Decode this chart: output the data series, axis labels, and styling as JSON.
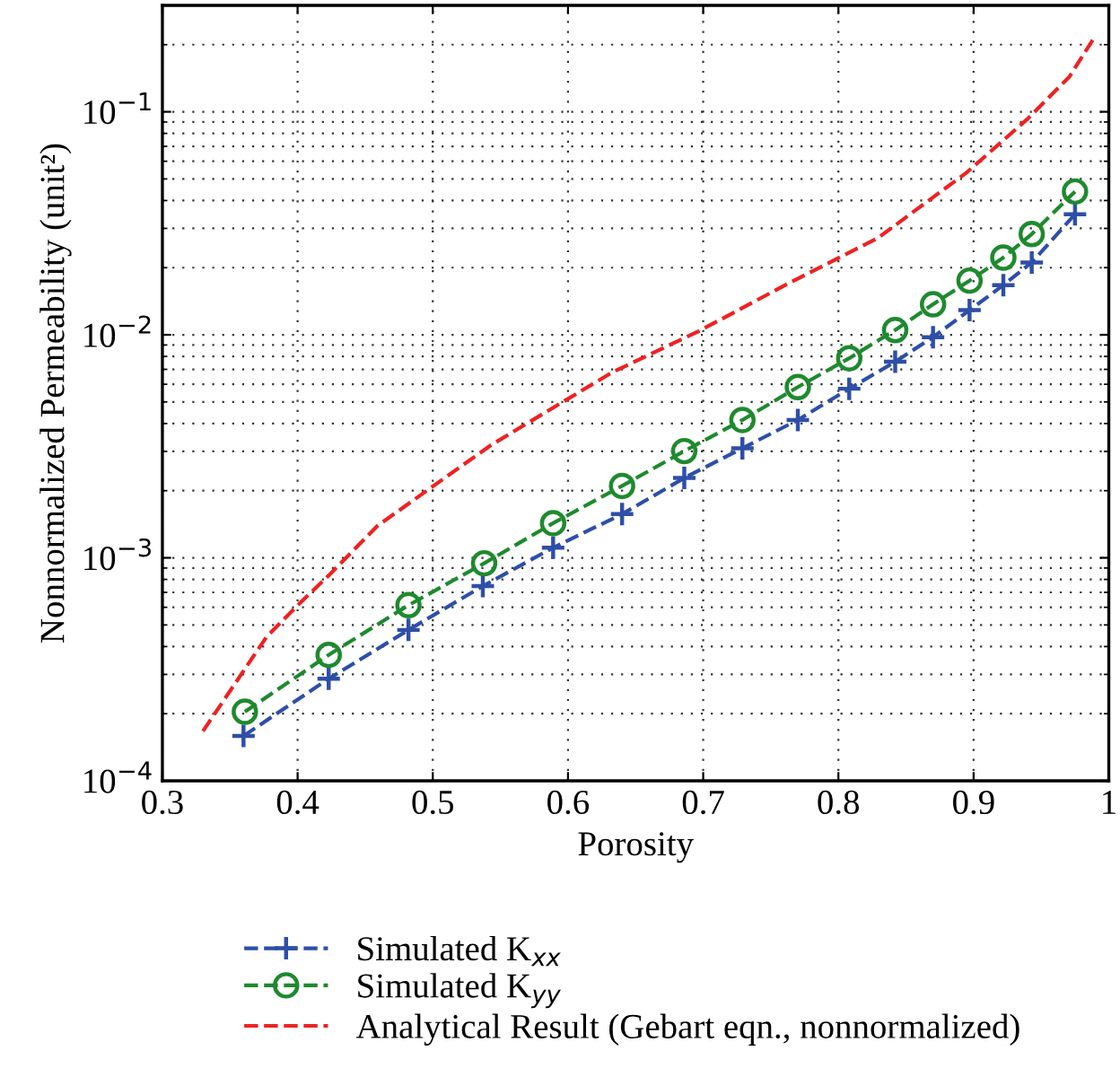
{
  "chart_data": {
    "type": "line",
    "xlabel": "Porosity",
    "ylabel": "Nonnormalized Permeability (unit²)",
    "log": "y",
    "grid": true,
    "legend": "bottom",
    "line_style": "dashed",
    "xlim": [
      0.3,
      1
    ],
    "xticks": [
      0.3,
      0.4,
      0.5,
      0.6,
      0.7,
      0.8,
      0.9,
      1
    ],
    "ylim": [
      0.0001,
      0.3
    ],
    "yticks": [
      {
        "value": 0.0001,
        "label": "10$^{−4}$"
      },
      {
        "value": 0.001,
        "label": "10$^{−3}$"
      },
      {
        "value": 0.01,
        "label": "10$^{−2}$"
      },
      {
        "value": 0.1,
        "label": "10$^{−1}$"
      }
    ],
    "series": [
      {
        "name": "Simulated K$_{xx}$",
        "color": "#2e4fa8",
        "marker": "cross",
        "x": [
          0.36,
          0.423,
          0.482,
          0.537,
          0.589,
          0.64,
          0.686,
          0.729,
          0.77,
          0.808,
          0.842,
          0.87,
          0.897,
          0.922,
          0.943,
          0.975
        ],
        "values": [
          0.000159,
          0.000287,
          0.000475,
          0.000747,
          0.00111,
          0.00157,
          0.00228,
          0.0031,
          0.00415,
          0.00573,
          0.00757,
          0.00976,
          0.0129,
          0.0167,
          0.0211,
          0.0347
        ]
      },
      {
        "name": "Simulated K$_{yy}$",
        "color": "#1e8a2e",
        "marker": "circle",
        "x": [
          0.361,
          0.423,
          0.482,
          0.538,
          0.589,
          0.64,
          0.686,
          0.729,
          0.77,
          0.808,
          0.842,
          0.87,
          0.897,
          0.922,
          0.943,
          0.975
        ],
        "values": [
          0.000204,
          0.000367,
          0.000613,
          0.000945,
          0.00143,
          0.0021,
          0.00301,
          0.00415,
          0.00583,
          0.00785,
          0.0105,
          0.0137,
          0.0175,
          0.0222,
          0.0283,
          0.0439
        ]
      },
      {
        "name": "Analytical Result (Gebart eqn., nonnormalized)",
        "color": "#ee2222",
        "marker": "none",
        "x": [
          0.33,
          0.353,
          0.377,
          0.401,
          0.424,
          0.459,
          0.499,
          0.543,
          0.591,
          0.633,
          0.697,
          0.763,
          0.829,
          0.895,
          0.94,
          0.971,
          0.99
        ],
        "values": [
          0.000167,
          0.000269,
          0.000442,
          0.00062,
          0.000845,
          0.00139,
          0.00207,
          0.0032,
          0.00479,
          0.0068,
          0.0104,
          0.017,
          0.0271,
          0.0535,
          0.093,
          0.144,
          0.219
        ]
      }
    ]
  }
}
